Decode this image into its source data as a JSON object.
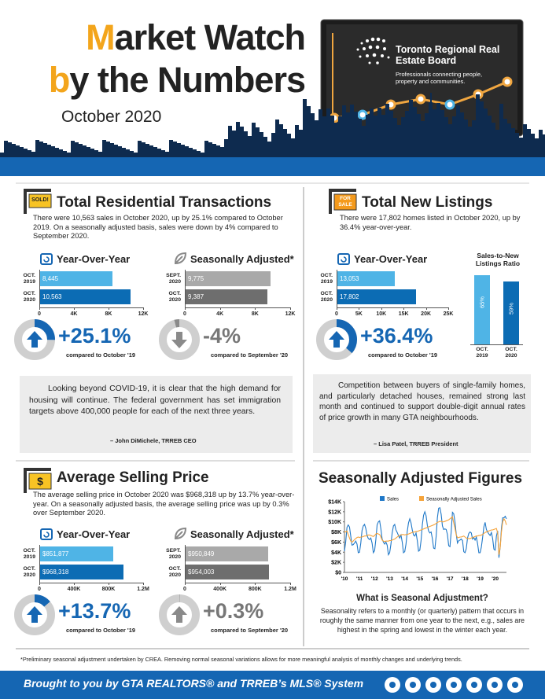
{
  "header": {
    "title_line1": "Market Watch",
    "title_line2": "by the Numbers",
    "date": "October 2020",
    "org_name": "Toronto Regional Real Estate Board",
    "org_tagline": "Professionals connecting people, property and communities."
  },
  "transactions": {
    "badge": "SOLD!",
    "title": "Total Residential Transactions",
    "text": "There were 10,563 sales in October 2020, up by 25.1% compared to October 2019. On a seasonally adjusted basis, sales were down by 4% compared to September 2020.",
    "yoy": {
      "title": "Year-Over-Year",
      "categories": [
        "OCT. 2019",
        "OCT. 2020"
      ],
      "values": [
        8445,
        10563
      ],
      "value_labels": [
        "8,445",
        "10,563"
      ],
      "colors": [
        "#4fb4e6",
        "#0c6cb4"
      ],
      "xlim": [
        0,
        12000
      ],
      "xticks": [
        0,
        {
          "value": 4000,
          "label": "4K"
        },
        {
          "value": 8000,
          "label": "8K"
        },
        {
          "value": 12000,
          "label": "12K"
        }
      ],
      "change_value": 25.1,
      "change_label": "+25.1%",
      "compare": "compared to October '19"
    },
    "seasonal": {
      "title": "Seasonally Adjusted*",
      "categories": [
        "SEPT. 2020",
        "OCT. 2020"
      ],
      "values": [
        9775,
        9387
      ],
      "value_labels": [
        "9,775",
        "9,387"
      ],
      "colors": [
        "#a9a9a9",
        "#6e6e6e"
      ],
      "xlim": [
        0,
        12000
      ],
      "xticks": [
        0,
        {
          "value": 4000,
          "label": "4K"
        },
        {
          "value": 8000,
          "label": "8K"
        },
        {
          "value": 12000,
          "label": "12K"
        }
      ],
      "change_value": -4,
      "change_label": "-4%",
      "compare": "compared to September '20"
    }
  },
  "listings": {
    "badge": "FOR SALE",
    "title": "Total New Listings",
    "text": "There were 17,802 homes listed in October 2020, up by 36.4% year-over-year.",
    "yoy": {
      "title": "Year-Over-Year",
      "categories": [
        "OCT. 2019",
        "OCT. 2020"
      ],
      "values": [
        13053,
        17802
      ],
      "value_labels": [
        "13,053",
        "17,802"
      ],
      "colors": [
        "#4fb4e6",
        "#0c6cb4"
      ],
      "xlim": [
        0,
        25000
      ],
      "xticks": [
        0,
        {
          "value": 5000,
          "label": "5K"
        },
        {
          "value": 10000,
          "label": "10K"
        },
        {
          "value": 15000,
          "label": "15K"
        },
        {
          "value": 20000,
          "label": "20K"
        },
        {
          "value": 25000,
          "label": "25K"
        }
      ],
      "change_value": 36.4,
      "change_label": "+36.4%",
      "compare": "compared to October '19"
    },
    "ratio": {
      "title": "Sales-to-New Listings Ratio",
      "categories": [
        "OCT. 2019",
        "OCT. 2020"
      ],
      "values": [
        65,
        59
      ],
      "value_labels": [
        "65%",
        "59%"
      ],
      "colors": [
        "#4fb4e6",
        "#0c6cb4"
      ]
    }
  },
  "quote1": {
    "text": "Looking beyond COVID-19, it is clear that the high demand for housing will continue. The federal government has set immigration targets above 400,000 people for each of the next three years.",
    "author": "– John DiMichele, TRREB CEO"
  },
  "quote2": {
    "text": "Competition between buyers of single-family homes, and particularly detached houses, remained strong last month and continued to support double-digit annual rates of price growth in many GTA neighbourhoods.",
    "author": "– Lisa Patel, TRREB President"
  },
  "price": {
    "badge": "$",
    "title": "Average Selling Price",
    "text": "The average selling price in October 2020 was $968,318 up by 13.7% year-over-year. On a seasonally adjusted basis, the average selling price was up by 0.3% over September 2020.",
    "yoy": {
      "title": "Year-Over-Year",
      "categories": [
        "OCT. 2019",
        "OCT. 2020"
      ],
      "values": [
        851877,
        968318
      ],
      "value_labels": [
        "$851,877",
        "$968,318"
      ],
      "colors": [
        "#4fb4e6",
        "#0c6cb4"
      ],
      "xlim": [
        0,
        1200000
      ],
      "xticks": [
        0,
        {
          "value": 400000,
          "label": "400K"
        },
        {
          "value": 800000,
          "label": "800K"
        },
        {
          "value": 1200000,
          "label": "1.2M"
        }
      ],
      "change_value": 13.7,
      "change_label": "+13.7%",
      "compare": "compared to October '19"
    },
    "seasonal": {
      "title": "Seasonally Adjusted*",
      "categories": [
        "SEPT. 2020",
        "OCT. 2020"
      ],
      "values": [
        950849,
        954003
      ],
      "value_labels": [
        "$950,849",
        "$954,003"
      ],
      "colors": [
        "#a9a9a9",
        "#6e6e6e"
      ],
      "xlim": [
        0,
        1200000
      ],
      "xticks": [
        0,
        {
          "value": 400000,
          "label": "400K"
        },
        {
          "value": 800000,
          "label": "800K"
        },
        {
          "value": 1200000,
          "label": "1.2M"
        }
      ],
      "change_value": 0.3,
      "change_label": "+0.3%",
      "compare": "compared to September '20"
    }
  },
  "seasonal_chart": {
    "type": "line",
    "title": "Seasonally Adjusted Figures",
    "categories": [
      "'10",
      null,
      null,
      null,
      null,
      null,
      null,
      null,
      null,
      null,
      null,
      null,
      "'11",
      null,
      null,
      null,
      null,
      null,
      null,
      null,
      null,
      null,
      null,
      null,
      "'12",
      null,
      null,
      null,
      null,
      null,
      null,
      null,
      null,
      null,
      null,
      null,
      "'13",
      null,
      null,
      null,
      null,
      null,
      null,
      null,
      null,
      null,
      null,
      null,
      "'14",
      null,
      null,
      null,
      null,
      null,
      null,
      null,
      null,
      null,
      null,
      null,
      "'15",
      null,
      null,
      null,
      null,
      null,
      null,
      null,
      null,
      null,
      null,
      null,
      "'16",
      null,
      null,
      null,
      null,
      null,
      null,
      null,
      null,
      null,
      null,
      null,
      "'17",
      null,
      null,
      null,
      null,
      null,
      null,
      null,
      null,
      null,
      null,
      null,
      "'18",
      null,
      null,
      null,
      null,
      null,
      null,
      null,
      null,
      null,
      null,
      null,
      "'19",
      null,
      null,
      null,
      null,
      null,
      null,
      null,
      null,
      null,
      null,
      null,
      "'20",
      null,
      null,
      null,
      null,
      null,
      null,
      null,
      null,
      null
    ],
    "series": [
      {
        "name": "Sales",
        "color": "#1f78c8",
        "values": [
          4200,
          6100,
          8900,
          9400,
          9000,
          7200,
          5400,
          5500,
          5800,
          6200,
          5600,
          3900,
          4000,
          5800,
          8300,
          9200,
          9500,
          8700,
          7300,
          6700,
          6500,
          6800,
          5800,
          3900,
          4300,
          6500,
          9400,
          10000,
          10200,
          8600,
          6600,
          6000,
          5600,
          6000,
          5400,
          3500,
          3900,
          5600,
          7800,
          9200,
          9500,
          8400,
          7900,
          7300,
          6800,
          7400,
          6000,
          3900,
          4100,
          5600,
          8100,
          9800,
          10600,
          9800,
          8400,
          7400,
          7200,
          7800,
          6300,
          4200,
          4400,
          6300,
          9400,
          11300,
          12000,
          11200,
          9300,
          8200,
          7800,
          8000,
          6700,
          4800,
          4700,
          7100,
          10800,
          12700,
          12800,
          11500,
          9200,
          8500,
          8600,
          8500,
          7500,
          5300,
          5100,
          8100,
          11900,
          11600,
          10000,
          7600,
          5800,
          6300,
          6400,
          6600,
          6300,
          4100,
          3900,
          4700,
          6800,
          7700,
          8000,
          7800,
          6600,
          6900,
          6400,
          7000,
          5700,
          3900,
          3900,
          5000,
          6900,
          9000,
          9900,
          8500,
          8000,
          7600,
          7300,
          7900,
          6700,
          4600,
          4400,
          7200,
          8200,
          2900,
          5000,
          8700,
          10800,
          10800,
          11100,
          10600
        ]
      },
      {
        "name": "Seasonally Adjusted Sales",
        "color": "#f5a33a",
        "values": [
          8100,
          8000,
          8200,
          7500,
          6800,
          6200,
          6000,
          6200,
          6500,
          6700,
          6900,
          7000,
          6900,
          7000,
          7000,
          7100,
          7200,
          7200,
          7300,
          7400,
          7400,
          7300,
          7200,
          7100,
          7300,
          7600,
          7700,
          7600,
          7500,
          7000,
          6400,
          6200,
          6100,
          6200,
          6200,
          6200,
          6300,
          6300,
          6400,
          6500,
          6600,
          6800,
          7000,
          7200,
          7300,
          7400,
          7500,
          7500,
          7400,
          7500,
          7500,
          7600,
          7700,
          7800,
          7900,
          8000,
          8000,
          8100,
          8100,
          8200,
          8300,
          8400,
          8500,
          8600,
          8700,
          8800,
          8900,
          9000,
          9100,
          9200,
          9300,
          9400,
          9500,
          9700,
          9900,
          10000,
          10100,
          10100,
          10000,
          10000,
          10100,
          10200,
          10300,
          10400,
          10600,
          10800,
          11000,
          9800,
          8700,
          7400,
          6900,
          6900,
          7000,
          7000,
          7100,
          7200,
          7000,
          6800,
          6700,
          6700,
          6700,
          6800,
          6900,
          7000,
          7100,
          7200,
          7200,
          7300,
          7300,
          7400,
          7500,
          7700,
          7900,
          8000,
          8100,
          8200,
          8300,
          8400,
          8400,
          8500,
          8600,
          8700,
          7800,
          3500,
          4900,
          8000,
          10000,
          10600,
          10200,
          9400
        ]
      }
    ],
    "ylim": [
      0,
      14000
    ],
    "yticks": [
      {
        "value": 0,
        "label": "$0"
      },
      {
        "value": 2000,
        "label": "$2K"
      },
      {
        "value": 4000,
        "label": "$4K"
      },
      {
        "value": 6000,
        "label": "$6K"
      },
      {
        "value": 8000,
        "label": "$8K"
      },
      {
        "value": 10000,
        "label": "$10K"
      },
      {
        "value": 12000,
        "label": "$12K"
      },
      {
        "value": 14000,
        "label": "$14K"
      }
    ],
    "legend": "top"
  },
  "explainer": {
    "title": "What is Seasonal Adjustment?",
    "text": "Seasonality refers to a monthly (or quarterly) pattern that occurs in roughly the same manner from one year to the next, e.g., sales are highest in the spring and lowest in the winter each year."
  },
  "footnote": "*Preliminary seasonal adjustment undertaken by CREA. Removing normal seasonal variations allows for more meaningful analysis of monthly changes and underlying trends.",
  "footer": "Brought to you by GTA REALTORS® and TRREB’s MLS® System"
}
